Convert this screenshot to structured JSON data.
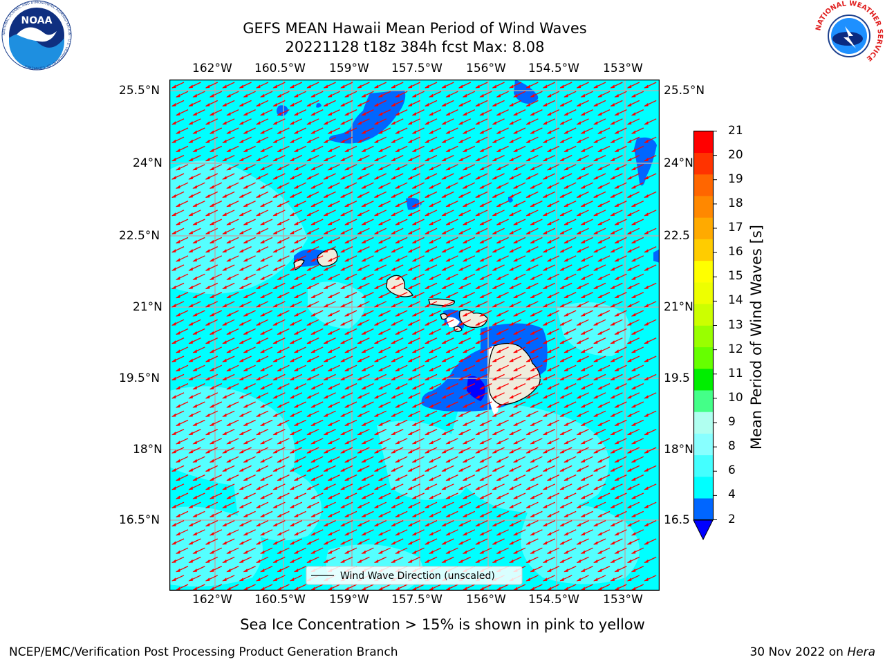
{
  "header": {
    "title_line1": "GEFS MEAN Hawaii Mean Period of Wind Waves",
    "title_line2": "20221128 t18z 384h fcst   Max: 8.08"
  },
  "logos": {
    "noaa_text": "NOAA",
    "noaa_ring": "NATIONAL OCEANIC AND ATMOSPHERIC ADMINISTRATION · U.S. DEPARTMENT OF COMMERCE",
    "nws_ring": "NATIONAL WEATHER SERVICE"
  },
  "map": {
    "lon_labels": [
      "162°W",
      "160.5°W",
      "159°W",
      "157.5°W",
      "156°W",
      "154.5°W",
      "153°W"
    ],
    "lat_labels_left": [
      "25.5°N",
      "24°N",
      "22.5°N",
      "21°N",
      "19.5°N",
      "18°N",
      "16.5°N"
    ],
    "lat_labels_right": [
      "25.5°N",
      "24°N",
      "22.5",
      "21°N",
      "19.5",
      "18°N",
      "16.5"
    ],
    "legend_label": "Wind Wave Direction (unscaled)",
    "ocean_color": "#00ffff",
    "land_color": "#efecdc",
    "arrow_color": "#ff0000"
  },
  "colorbar": {
    "label": "Mean Period of Wind Waves [s]",
    "ticks": [
      "2",
      "4",
      "6",
      "8",
      "9",
      "10",
      "11",
      "12",
      "13",
      "14",
      "15",
      "16",
      "17",
      "18",
      "19",
      "20",
      "21"
    ],
    "colors": [
      "#0066ff",
      "#00ffff",
      "#44ffff",
      "#88ffff",
      "#b0fff0",
      "#44ff88",
      "#00ee00",
      "#66ff00",
      "#99ff00",
      "#ccff00",
      "#eeff00",
      "#ffff00",
      "#ffcc00",
      "#ffaa00",
      "#ff8800",
      "#ff6600",
      "#ff3300",
      "#ff0000"
    ],
    "under_color": "#0000ff"
  },
  "footer": {
    "note": "Sea Ice Concentration > 15% is shown in pink to yellow",
    "left": "NCEP/EMC/Verification Post Processing Product Generation Branch",
    "right_prefix": "30 Nov 2022 on ",
    "right_machine": "Hera"
  }
}
